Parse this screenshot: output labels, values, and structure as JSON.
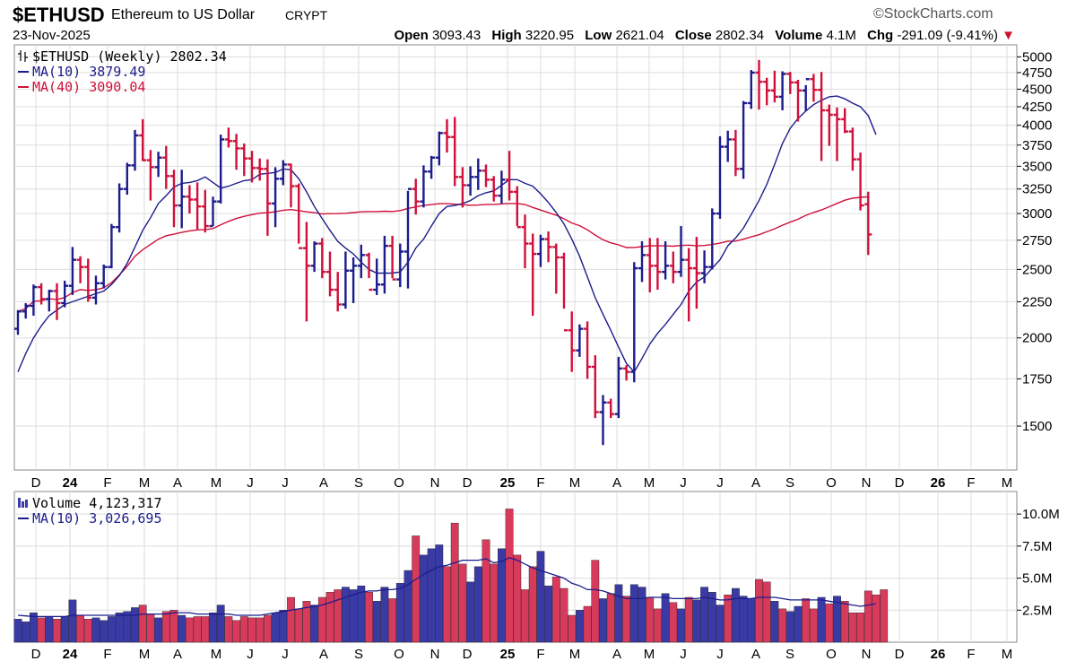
{
  "header": {
    "symbol": "$ETHUSD",
    "name": "Ethereum to US Dollar",
    "exchange": "CRYPT",
    "brand": "StockCharts.com",
    "date": "23-Nov-2025",
    "open_label": "Open",
    "open": "3093.43",
    "high_label": "High",
    "high": "3220.95",
    "low_label": "Low",
    "low": "2621.04",
    "close_label": "Close",
    "close": "2802.34",
    "volume_label": "Volume",
    "volume": "4.1M",
    "chg_label": "Chg",
    "chg": "-291.09 (-9.41%)",
    "chg_arrow": "▼"
  },
  "colors": {
    "up": "#1c1c8c",
    "down": "#d0103a",
    "ma_short": "#1c1c8c",
    "ma_long": "#d0103a",
    "vol_up": "#3a3aa6",
    "vol_down": "#d83a5c",
    "grid": "#dddddd"
  },
  "chart_data": [
    {
      "type": "ohlc",
      "legend": [
        {
          "text": "$ETHUSD (Weekly) 2802.34",
          "color": "#000000",
          "icon": "ohlc-bar-icon"
        },
        {
          "text": "MA(10) 3879.49",
          "color": "#1c1c8c",
          "icon": "line-icon"
        },
        {
          "text": "MA(40) 3090.04",
          "color": "#d0103a",
          "icon": "line-icon"
        }
      ],
      "y_scale": "log",
      "ylim": [
        1300,
        5200
      ],
      "y_ticks": [
        1500,
        1750,
        2000,
        2250,
        2500,
        2750,
        3000,
        3250,
        3500,
        3750,
        4000,
        4250,
        4500,
        4750,
        5000
      ],
      "x_ticks": [
        "D",
        "24",
        "F",
        "M",
        "A",
        "M",
        "J",
        "J",
        "A",
        "S",
        "O",
        "N",
        "D",
        "25",
        "F",
        "M",
        "A",
        "M",
        "J",
        "J",
        "A",
        "S",
        "O",
        "N",
        "D",
        "26",
        "F",
        "M"
      ],
      "x_ticks_bold": [
        "24",
        "25",
        "26"
      ],
      "grid": true,
      "bars": [
        [
          2060,
          2190,
          2020,
          2180
        ],
        [
          2180,
          2240,
          2130,
          2220
        ],
        [
          2220,
          2380,
          2150,
          2360
        ],
        [
          2360,
          2390,
          2230,
          2270
        ],
        [
          2270,
          2340,
          2180,
          2330
        ],
        [
          2330,
          2390,
          2120,
          2240
        ],
        [
          2240,
          2410,
          2210,
          2370
        ],
        [
          2370,
          2690,
          2300,
          2580
        ],
        [
          2580,
          2610,
          2390,
          2520
        ],
        [
          2520,
          2590,
          2250,
          2280
        ],
        [
          2280,
          2450,
          2230,
          2390
        ],
        [
          2390,
          2540,
          2350,
          2520
        ],
        [
          2520,
          2900,
          2510,
          2870
        ],
        [
          2870,
          3310,
          2820,
          3250
        ],
        [
          3250,
          3540,
          3190,
          3510
        ],
        [
          3510,
          3940,
          3450,
          3870
        ],
        [
          3870,
          4080,
          3560,
          3570
        ],
        [
          3570,
          3690,
          3130,
          3490
        ],
        [
          3490,
          3670,
          3380,
          3600
        ],
        [
          3600,
          3740,
          3250,
          3390
        ],
        [
          3390,
          3460,
          2870,
          3080
        ],
        [
          3080,
          3460,
          2860,
          3170
        ],
        [
          3170,
          3290,
          3000,
          3140
        ],
        [
          3140,
          3320,
          2850,
          3070
        ],
        [
          3070,
          3240,
          2820,
          2880
        ],
        [
          2880,
          3170,
          2880,
          3120
        ],
        [
          3120,
          3880,
          3100,
          3820
        ],
        [
          3820,
          3970,
          3720,
          3800
        ],
        [
          3800,
          3890,
          3460,
          3710
        ],
        [
          3710,
          3770,
          3390,
          3590
        ],
        [
          3590,
          3680,
          3320,
          3480
        ],
        [
          3480,
          3590,
          3340,
          3470
        ],
        [
          3470,
          3580,
          2790,
          3100
        ],
        [
          3100,
          3490,
          2870,
          3360
        ],
        [
          3360,
          3570,
          3290,
          3520
        ],
        [
          3520,
          3530,
          3060,
          3280
        ],
        [
          3280,
          3310,
          2720,
          2680
        ],
        [
          2680,
          2920,
          2110,
          2530
        ],
        [
          2530,
          2740,
          2480,
          2720
        ],
        [
          2720,
          2770,
          2430,
          2480
        ],
        [
          2480,
          2650,
          2290,
          2340
        ],
        [
          2340,
          2480,
          2180,
          2230
        ],
        [
          2230,
          2650,
          2200,
          2490
        ],
        [
          2490,
          2600,
          2240,
          2530
        ],
        [
          2530,
          2710,
          2430,
          2620
        ],
        [
          2620,
          2640,
          2430,
          2340
        ],
        [
          2340,
          2590,
          2300,
          2380
        ],
        [
          2380,
          2790,
          2310,
          2700
        ],
        [
          2700,
          2790,
          2430,
          2420
        ],
        [
          2420,
          2720,
          2360,
          2650
        ],
        [
          2650,
          3230,
          2350,
          3250
        ],
        [
          3250,
          3360,
          2990,
          3120
        ],
        [
          3120,
          3510,
          3060,
          3440
        ],
        [
          3440,
          3620,
          3360,
          3600
        ],
        [
          3600,
          3920,
          3510,
          3900
        ],
        [
          3900,
          4080,
          3660,
          3850
        ],
        [
          3850,
          4110,
          3280,
          3380
        ],
        [
          3380,
          3490,
          3060,
          3290
        ],
        [
          3290,
          3500,
          3180,
          3380
        ],
        [
          3380,
          3590,
          3240,
          3450
        ],
        [
          3450,
          3520,
          3270,
          3350
        ],
        [
          3350,
          3390,
          3120,
          3180
        ],
        [
          3180,
          3450,
          3100,
          3350
        ],
        [
          3350,
          3680,
          3130,
          3220
        ],
        [
          3220,
          3280,
          2880,
          2870
        ],
        [
          2870,
          2990,
          2510,
          2720
        ],
        [
          2720,
          2810,
          2150,
          2630
        ],
        [
          2630,
          2800,
          2520,
          2760
        ],
        [
          2760,
          2830,
          2560,
          2690
        ],
        [
          2690,
          2720,
          2310,
          2600
        ],
        [
          2600,
          2640,
          2200,
          2050
        ],
        [
          2050,
          2180,
          1790,
          1920
        ],
        [
          1920,
          2090,
          1880,
          2060
        ],
        [
          2060,
          2110,
          1750,
          1820
        ],
        [
          1820,
          1890,
          1540,
          1570
        ],
        [
          1570,
          1660,
          1410,
          1620
        ],
        [
          1620,
          1640,
          1540,
          1560
        ],
        [
          1560,
          1880,
          1540,
          1810
        ],
        [
          1810,
          1830,
          1740,
          1790
        ],
        [
          1790,
          2560,
          1730,
          2510
        ],
        [
          2510,
          2740,
          2400,
          2620
        ],
        [
          2620,
          2770,
          2320,
          2530
        ],
        [
          2530,
          2770,
          2340,
          2480
        ],
        [
          2480,
          2740,
          2420,
          2530
        ],
        [
          2530,
          2650,
          2390,
          2480
        ],
        [
          2480,
          2880,
          2440,
          2580
        ],
        [
          2580,
          2680,
          2110,
          2510
        ],
        [
          2510,
          2780,
          2200,
          2470
        ],
        [
          2470,
          2660,
          2390,
          2520
        ],
        [
          2520,
          3050,
          2500,
          3000
        ],
        [
          3000,
          3860,
          2950,
          3730
        ],
        [
          3730,
          3930,
          3550,
          3820
        ],
        [
          3820,
          3940,
          3390,
          3470
        ],
        [
          3470,
          4330,
          3360,
          4300
        ],
        [
          4300,
          4790,
          4220,
          4750
        ],
        [
          4750,
          4950,
          4210,
          4610
        ],
        [
          4610,
          4670,
          4270,
          4480
        ],
        [
          4480,
          4780,
          4310,
          4390
        ],
        [
          4390,
          4770,
          4200,
          4730
        ],
        [
          4730,
          4760,
          4430,
          4600
        ],
        [
          4600,
          4640,
          4050,
          4480
        ],
        [
          4480,
          4560,
          4190,
          4650
        ],
        [
          4650,
          4730,
          4320,
          4490
        ],
        [
          4490,
          4760,
          3560,
          4200
        ],
        [
          4200,
          4280,
          3740,
          4140
        ],
        [
          4140,
          4240,
          3560,
          4080
        ],
        [
          4080,
          4230,
          3900,
          3920
        ],
        [
          3920,
          3970,
          3450,
          3580
        ],
        [
          3580,
          3660,
          3030,
          3080
        ],
        [
          3093,
          3221,
          2621,
          2802
        ]
      ],
      "ma10": [
        1790,
        1900,
        2000,
        2080,
        2150,
        2190,
        2230,
        2250,
        2270,
        2290,
        2310,
        2330,
        2380,
        2450,
        2550,
        2690,
        2840,
        2960,
        3100,
        3180,
        3270,
        3310,
        3320,
        3340,
        3380,
        3320,
        3260,
        3280,
        3310,
        3340,
        3350,
        3410,
        3420,
        3430,
        3470,
        3460,
        3360,
        3220,
        3070,
        2950,
        2840,
        2740,
        2680,
        2630,
        2560,
        2500,
        2470,
        2470,
        2470,
        2480,
        2560,
        2680,
        2760,
        2880,
        3000,
        3070,
        3080,
        3100,
        3130,
        3180,
        3210,
        3230,
        3290,
        3350,
        3350,
        3310,
        3280,
        3200,
        3110,
        3010,
        2900,
        2760,
        2610,
        2440,
        2280,
        2160,
        2050,
        1940,
        1840,
        1790,
        1870,
        1960,
        2030,
        2090,
        2160,
        2230,
        2330,
        2400,
        2440,
        2510,
        2580,
        2700,
        2770,
        2860,
        2990,
        3130,
        3300,
        3520,
        3770,
        3960,
        4090,
        4190,
        4280,
        4340,
        4390,
        4400,
        4360,
        4300,
        4250,
        4130,
        3879
      ]
    },
    {
      "type": "bar",
      "legend": [
        {
          "text": "Volume 4,123,317",
          "color": "#000000",
          "icon": "volume-bars-icon"
        },
        {
          "text": "MA(10) 3,026,695",
          "color": "#1c1c8c",
          "icon": "line-icon"
        }
      ],
      "ylim": [
        0,
        11.2
      ],
      "y_ticks": [
        2.5,
        5.0,
        7.5,
        10.0
      ],
      "y_tick_labels": [
        "2.5M",
        "5.0M",
        "7.5M",
        "10.0M"
      ],
      "x_ticks": [
        "D",
        "24",
        "F",
        "M",
        "A",
        "M",
        "J",
        "J",
        "A",
        "S",
        "O",
        "N",
        "D",
        "25",
        "F",
        "M",
        "A",
        "M",
        "J",
        "J",
        "A",
        "S",
        "O",
        "N",
        "D",
        "26",
        "F",
        "M"
      ],
      "x_ticks_bold": [
        "24",
        "25",
        "26"
      ],
      "grid": true,
      "values": [
        1.8,
        1.6,
        2.3,
        1.9,
        2.0,
        1.8,
        2.0,
        3.3,
        2.1,
        1.8,
        1.9,
        1.7,
        2.0,
        2.3,
        2.4,
        2.7,
        2.9,
        2.2,
        1.9,
        2.4,
        2.5,
        2.1,
        1.9,
        2.0,
        2.0,
        2.3,
        2.9,
        2.0,
        1.7,
        2.0,
        1.9,
        1.9,
        2.1,
        2.3,
        2.5,
        3.5,
        2.6,
        3.2,
        2.9,
        3.5,
        3.9,
        4.1,
        4.3,
        4.1,
        4.4,
        3.9,
        3.2,
        4.3,
        3.4,
        4.6,
        5.6,
        8.3,
        6.8,
        7.3,
        7.6,
        5.9,
        9.3,
        6.1,
        4.7,
        5.9,
        8.0,
        6.1,
        7.3,
        10.4,
        6.8,
        4.1,
        5.9,
        7.1,
        4.4,
        5.1,
        4.2,
        2.1,
        2.5,
        2.8,
        6.4,
        3.4,
        3.8,
        4.5,
        3.6,
        4.5,
        4.3,
        3.5,
        2.6,
        3.8,
        3.1,
        2.6,
        3.5,
        3.3,
        4.3,
        3.9,
        2.9,
        3.7,
        4.2,
        3.6,
        3.4,
        4.9,
        4.7,
        3.2,
        2.6,
        2.4,
        2.8,
        3.4,
        2.6,
        3.5,
        3.0,
        3.6,
        3.2,
        2.3,
        2.3,
        4.0,
        3.7,
        4.1
      ],
      "up": [
        1,
        1,
        1,
        0,
        1,
        0,
        1,
        1,
        0,
        0,
        1,
        1,
        1,
        1,
        1,
        1,
        0,
        0,
        1,
        0,
        0,
        1,
        0,
        0,
        0,
        1,
        1,
        0,
        0,
        0,
        0,
        0,
        0,
        1,
        1,
        0,
        0,
        0,
        1,
        0,
        0,
        0,
        1,
        1,
        1,
        0,
        1,
        1,
        0,
        1,
        1,
        0,
        1,
        1,
        1,
        0,
        0,
        0,
        1,
        1,
        0,
        0,
        1,
        0,
        0,
        0,
        0,
        1,
        1,
        0,
        0,
        0,
        1,
        0,
        0,
        1,
        0,
        1,
        0,
        1,
        1,
        0,
        0,
        1,
        0,
        1,
        0,
        1,
        1,
        1,
        1,
        0,
        1,
        1,
        1,
        0,
        0,
        1,
        0,
        1,
        1,
        0,
        0,
        1,
        0,
        1,
        0,
        0,
        0,
        0,
        0
      ],
      "ma10": [
        2.1,
        2.05,
        2.0,
        2.0,
        2.0,
        2.0,
        2.0,
        2.1,
        2.1,
        2.1,
        2.1,
        2.1,
        2.1,
        2.1,
        2.1,
        2.1,
        2.2,
        2.2,
        2.2,
        2.2,
        2.3,
        2.3,
        2.3,
        2.2,
        2.2,
        2.2,
        2.2,
        2.2,
        2.1,
        2.1,
        2.1,
        2.1,
        2.2,
        2.3,
        2.4,
        2.5,
        2.6,
        2.7,
        2.8,
        2.9,
        3.1,
        3.3,
        3.5,
        3.7,
        3.9,
        4.0,
        4.0,
        4.1,
        4.1,
        4.2,
        4.5,
        4.9,
        5.3,
        5.6,
        5.9,
        6.0,
        6.2,
        6.4,
        6.4,
        6.4,
        6.5,
        6.2,
        6.3,
        6.6,
        6.4,
        6.1,
        5.8,
        5.6,
        5.4,
        5.2,
        5.0,
        4.6,
        4.4,
        4.1,
        4.1,
        4.0,
        3.8,
        3.6,
        3.4,
        3.4,
        3.4,
        3.5,
        3.5,
        3.5,
        3.4,
        3.4,
        3.4,
        3.4,
        3.5,
        3.4,
        3.3,
        3.3,
        3.4,
        3.4,
        3.4,
        3.5,
        3.5,
        3.5,
        3.4,
        3.3,
        3.3,
        3.3,
        3.3,
        3.3,
        3.2,
        3.1,
        3.0,
        2.9,
        2.8,
        2.9,
        3.0
      ]
    }
  ]
}
